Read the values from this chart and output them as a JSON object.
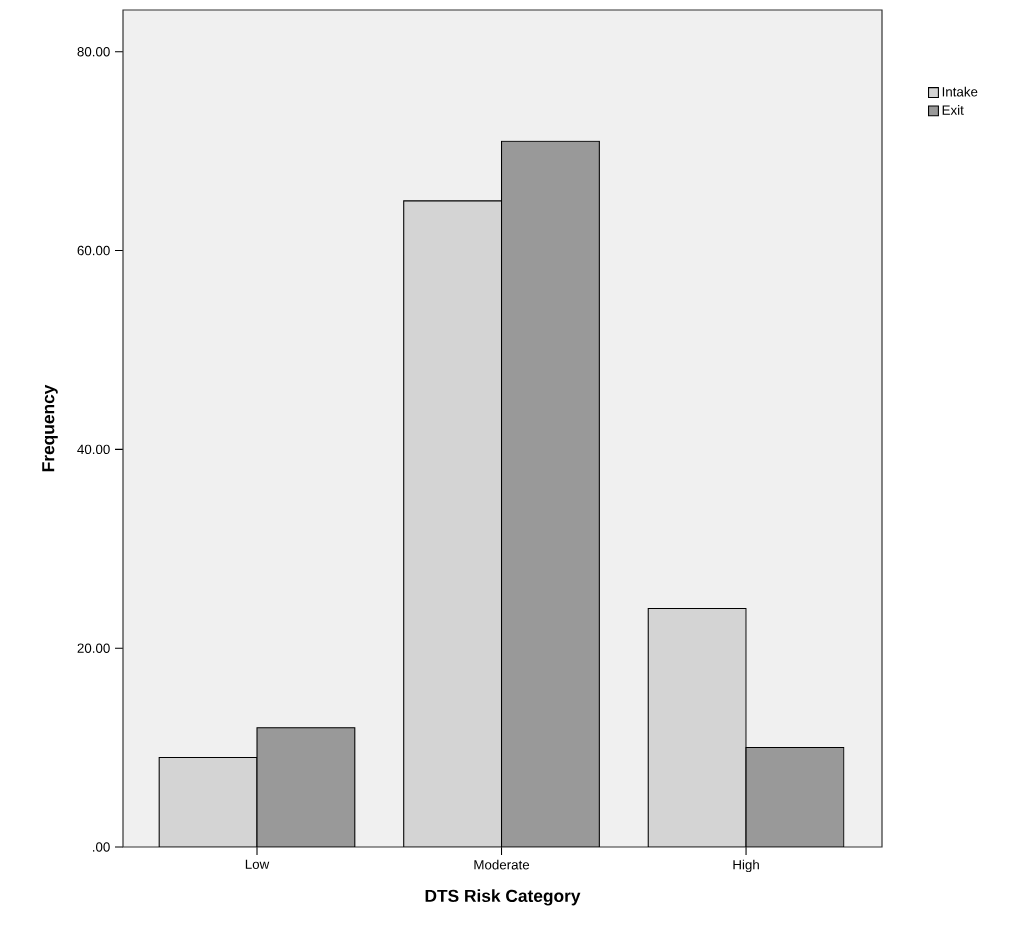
{
  "chart_data": {
    "type": "bar",
    "xlabel": "DTS Risk Category",
    "ylabel": "Frequency",
    "categories": [
      "Low",
      "Moderate",
      "High"
    ],
    "series": [
      {
        "name": "Intake",
        "color": "#d4d4d4",
        "values": [
          9,
          65,
          24
        ]
      },
      {
        "name": "Exit",
        "color": "#999999",
        "values": [
          12,
          71,
          10
        ]
      }
    ],
    "ylim": [
      0,
      84.2
    ],
    "yticks": [
      {
        "value": 0,
        "label": ".00"
      },
      {
        "value": 20,
        "label": "20.00"
      },
      {
        "value": 40,
        "label": "40.00"
      },
      {
        "value": 60,
        "label": "60.00"
      },
      {
        "value": 80,
        "label": "80.00"
      }
    ],
    "legend": "top right"
  }
}
